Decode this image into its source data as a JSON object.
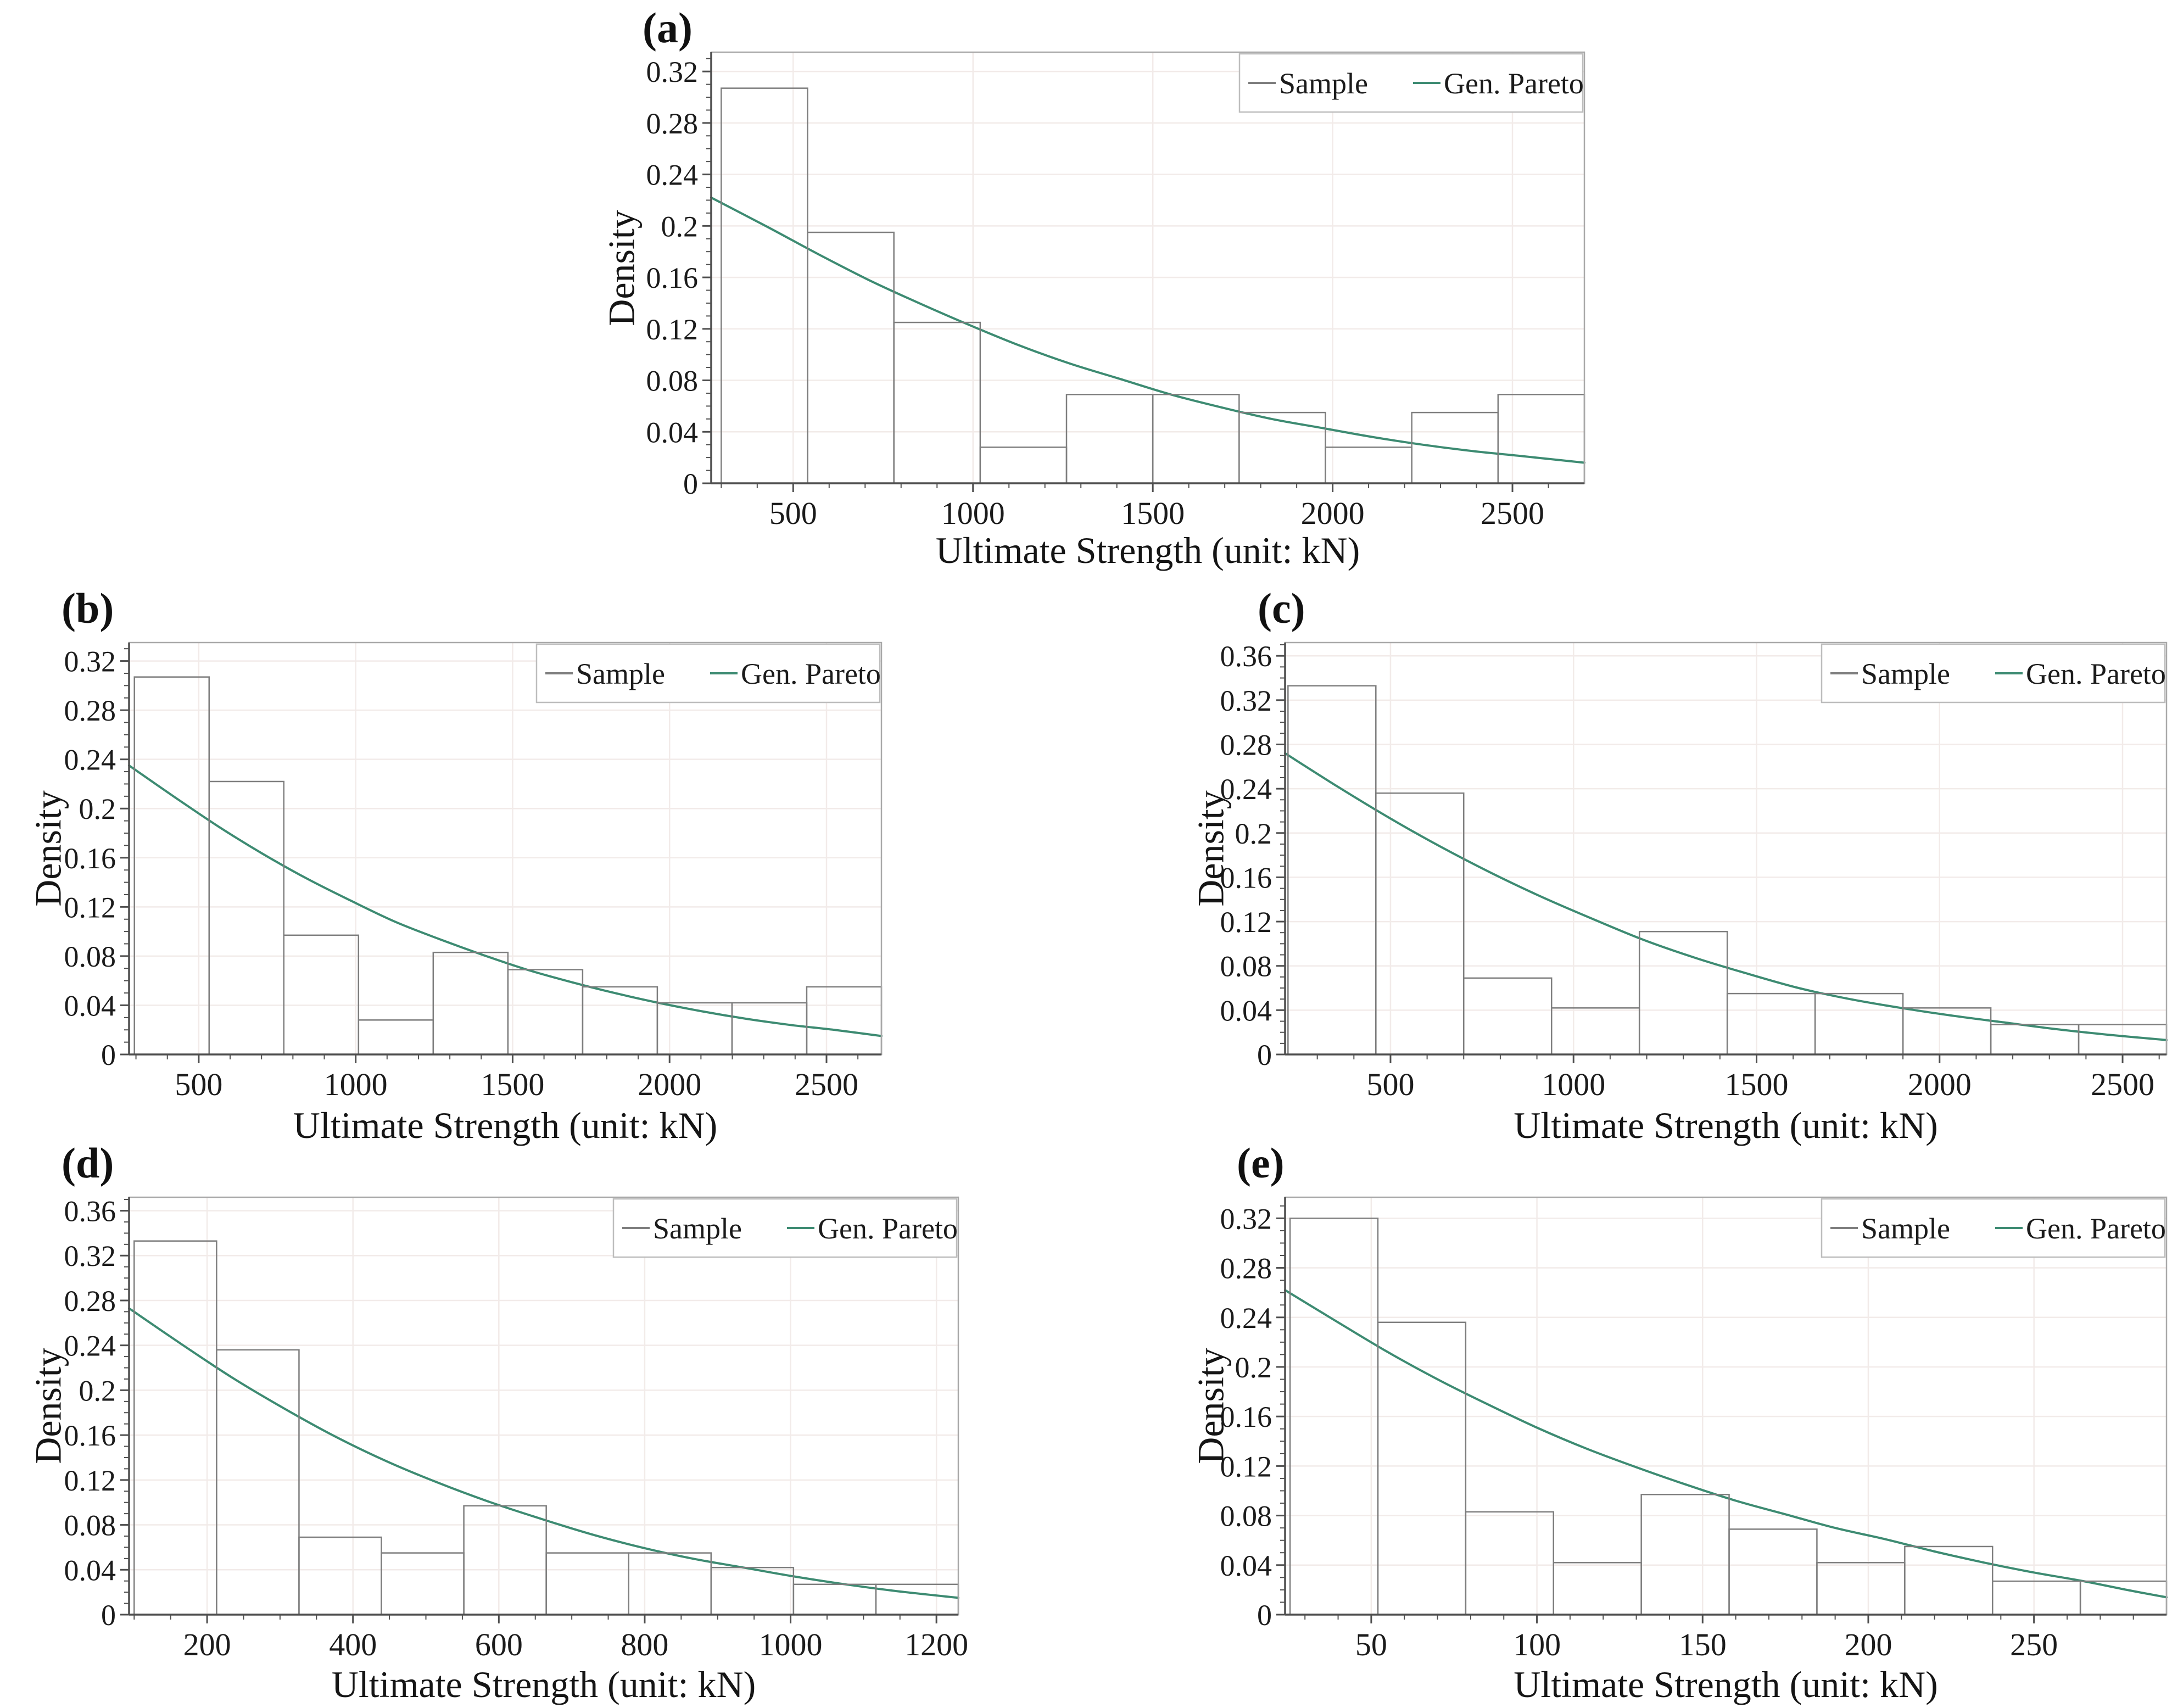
{
  "page": {
    "background": "#ffffff"
  },
  "styles": {
    "curve_color": "#3d8b72",
    "bar_edge_color": "#7e7e7e",
    "bar_fill": "none",
    "axis_color": "#4f4f4f",
    "box_color": "#a9a9a9",
    "grid_color": "#f2ebe9",
    "text_color": "#1b1b1b",
    "legend_border": "#bdbdbd",
    "legend_fill": "#ffffff"
  },
  "legend": {
    "items": [
      {
        "label": "Sample",
        "color": "#7e7e7e"
      },
      {
        "label": "Gen. Pareto",
        "color": "#3d8b72"
      }
    ]
  },
  "chart_data": [
    {
      "title": "(a)",
      "type": "bar",
      "subtype": "histogram-with-fit-line",
      "xlabel": "Ultimate Strength (unit: kN)",
      "ylabel": "Density",
      "xlim": [
        272,
        2700
      ],
      "ylim": [
        0,
        0.335
      ],
      "xticks": [
        500,
        1000,
        1500,
        2000,
        2500
      ],
      "yticks": [
        "0",
        "0.04",
        "0.08",
        "0.12",
        "0.16",
        "0.2",
        "0.24",
        "0.28",
        "0.32"
      ],
      "x_minor_step": 100,
      "y_minor_step": 0.01,
      "grid": true,
      "legend_position": "top-right",
      "legend_labels": [
        "Sample",
        "Gen. Pareto"
      ],
      "series": [
        {
          "name": "Sample",
          "type": "histogram",
          "bin_edges": [
            300,
            540,
            780,
            1020,
            1260,
            1500,
            1740,
            1980,
            2220,
            2460,
            2700
          ],
          "densities": [
            0.307,
            0.195,
            0.125,
            0.028,
            0.069,
            0.069,
            0.055,
            0.028,
            0.055,
            0.069
          ]
        },
        {
          "name": "Gen. Pareto",
          "type": "line",
          "points": [
            [
              272,
              0.222
            ],
            [
              430,
              0.199
            ],
            [
              570,
              0.178
            ],
            [
              710,
              0.158
            ],
            [
              850,
              0.14
            ],
            [
              990,
              0.123
            ],
            [
              1130,
              0.107
            ],
            [
              1270,
              0.093
            ],
            [
              1410,
              0.081
            ],
            [
              1550,
              0.069
            ],
            [
              1690,
              0.059
            ],
            [
              1830,
              0.05
            ],
            [
              1970,
              0.043
            ],
            [
              2110,
              0.036
            ],
            [
              2250,
              0.03
            ],
            [
              2390,
              0.025
            ],
            [
              2530,
              0.021
            ],
            [
              2700,
              0.016
            ]
          ]
        }
      ]
    },
    {
      "title": "(b)",
      "type": "bar",
      "subtype": "histogram-with-fit-line",
      "xlabel": "Ultimate Strength (unit: kN)",
      "ylabel": "Density",
      "xlim": [
        278,
        2675
      ],
      "ylim": [
        0,
        0.335
      ],
      "xticks": [
        500,
        1000,
        1500,
        2000,
        2500
      ],
      "yticks": [
        "0",
        "0.04",
        "0.08",
        "0.12",
        "0.16",
        "0.2",
        "0.24",
        "0.28",
        "0.32"
      ],
      "x_minor_step": 100,
      "y_minor_step": 0.01,
      "grid": true,
      "legend_position": "top-right",
      "legend_labels": [
        "Sample",
        "Gen. Pareto"
      ],
      "series": [
        {
          "name": "Sample",
          "type": "histogram",
          "bin_edges": [
            295,
            533,
            771,
            1009,
            1247,
            1485,
            1723,
            1961,
            2199,
            2437,
            2675
          ],
          "densities": [
            0.307,
            0.222,
            0.097,
            0.028,
            0.083,
            0.069,
            0.055,
            0.042,
            0.042,
            0.055
          ]
        },
        {
          "name": "Gen. Pareto",
          "type": "line",
          "points": [
            [
              278,
              0.235
            ],
            [
              425,
              0.209
            ],
            [
              565,
              0.185
            ],
            [
              705,
              0.163
            ],
            [
              845,
              0.143
            ],
            [
              985,
              0.125
            ],
            [
              1125,
              0.108
            ],
            [
              1265,
              0.094
            ],
            [
              1405,
              0.081
            ],
            [
              1545,
              0.069
            ],
            [
              1685,
              0.059
            ],
            [
              1825,
              0.05
            ],
            [
              1965,
              0.042
            ],
            [
              2105,
              0.035
            ],
            [
              2245,
              0.029
            ],
            [
              2385,
              0.024
            ],
            [
              2525,
              0.02
            ],
            [
              2675,
              0.015
            ]
          ]
        }
      ]
    },
    {
      "title": "(c)",
      "type": "bar",
      "subtype": "histogram-with-fit-line",
      "xlabel": "Ultimate Strength (unit: kN)",
      "ylabel": "Density",
      "xlim": [
        212,
        2620
      ],
      "ylim": [
        0,
        0.372
      ],
      "xticks": [
        500,
        1000,
        1500,
        2000,
        2500
      ],
      "yticks": [
        "0",
        "0.04",
        "0.08",
        "0.12",
        "0.16",
        "0.2",
        "0.24",
        "0.28",
        "0.32",
        "0.36"
      ],
      "x_minor_step": 100,
      "y_minor_step": 0.01,
      "grid": true,
      "legend_position": "top-right",
      "legend_labels": [
        "Sample",
        "Gen. Pareto"
      ],
      "series": [
        {
          "name": "Sample",
          "type": "histogram",
          "bin_edges": [
            220,
            460,
            700,
            940,
            1180,
            1420,
            1660,
            1900,
            2140,
            2380,
            2620
          ],
          "densities": [
            0.333,
            0.236,
            0.069,
            0.042,
            0.111,
            0.055,
            0.055,
            0.042,
            0.027,
            0.027
          ]
        },
        {
          "name": "Gen. Pareto",
          "type": "line",
          "points": [
            [
              212,
              0.272
            ],
            [
              355,
              0.242
            ],
            [
              495,
              0.214
            ],
            [
              635,
              0.188
            ],
            [
              775,
              0.164
            ],
            [
              915,
              0.142
            ],
            [
              1055,
              0.122
            ],
            [
              1195,
              0.103
            ],
            [
              1335,
              0.087
            ],
            [
              1475,
              0.073
            ],
            [
              1615,
              0.06
            ],
            [
              1755,
              0.05
            ],
            [
              1895,
              0.042
            ],
            [
              2035,
              0.035
            ],
            [
              2175,
              0.029
            ],
            [
              2315,
              0.023
            ],
            [
              2455,
              0.018
            ],
            [
              2620,
              0.013
            ]
          ]
        }
      ]
    },
    {
      "title": "(d)",
      "type": "bar",
      "subtype": "histogram-with-fit-line",
      "xlabel": "Ultimate Strength (unit: kN)",
      "ylabel": "Density",
      "xlim": [
        93,
        1230
      ],
      "ylim": [
        0,
        0.372
      ],
      "xticks": [
        200,
        400,
        600,
        800,
        1000,
        1200
      ],
      "yticks": [
        "0",
        "0.04",
        "0.08",
        "0.12",
        "0.16",
        "0.2",
        "0.24",
        "0.28",
        "0.32",
        "0.36"
      ],
      "x_minor_step": 50,
      "y_minor_step": 0.01,
      "grid": true,
      "legend_position": "top-right",
      "legend_labels": [
        "Sample",
        "Gen. Pareto"
      ],
      "series": [
        {
          "name": "Sample",
          "type": "histogram",
          "bin_edges": [
            100,
            213,
            326,
            439,
            552,
            665,
            778,
            891,
            1004,
            1117,
            1230
          ],
          "densities": [
            0.333,
            0.236,
            0.069,
            0.055,
            0.097,
            0.055,
            0.055,
            0.042,
            0.027,
            0.027
          ]
        },
        {
          "name": "Gen. Pareto",
          "type": "line",
          "points": [
            [
              93,
              0.273
            ],
            [
              165,
              0.241
            ],
            [
              235,
              0.211
            ],
            [
              305,
              0.184
            ],
            [
              375,
              0.159
            ],
            [
              445,
              0.137
            ],
            [
              515,
              0.118
            ],
            [
              585,
              0.101
            ],
            [
              655,
              0.086
            ],
            [
              725,
              0.072
            ],
            [
              795,
              0.06
            ],
            [
              865,
              0.05
            ],
            [
              935,
              0.042
            ],
            [
              1005,
              0.034
            ],
            [
              1075,
              0.027
            ],
            [
              1145,
              0.021
            ],
            [
              1230,
              0.015
            ]
          ]
        }
      ]
    },
    {
      "title": "(e)",
      "type": "bar",
      "subtype": "histogram-with-fit-line",
      "xlabel": "Ultimate Strength (unit: kN)",
      "ylabel": "Density",
      "xlim": [
        24,
        290
      ],
      "ylim": [
        0,
        0.337
      ],
      "xticks": [
        50,
        100,
        150,
        200,
        250
      ],
      "yticks": [
        "0",
        "0.04",
        "0.08",
        "0.12",
        "0.16",
        "0.2",
        "0.24",
        "0.28",
        "0.32"
      ],
      "x_minor_step": 10,
      "y_minor_step": 0.01,
      "grid": true,
      "legend_position": "top-right",
      "legend_labels": [
        "Sample",
        "Gen. Pareto"
      ],
      "series": [
        {
          "name": "Sample",
          "type": "histogram",
          "bin_edges": [
            25.5,
            52,
            78.5,
            105,
            131.5,
            158,
            184.5,
            211,
            237.5,
            264,
            290
          ],
          "densities": [
            0.32,
            0.236,
            0.083,
            0.042,
            0.097,
            0.069,
            0.042,
            0.055,
            0.027,
            0.027
          ]
        },
        {
          "name": "Gen. Pareto",
          "type": "line",
          "points": [
            [
              24,
              0.262
            ],
            [
              40,
              0.236
            ],
            [
              55,
              0.212
            ],
            [
              70,
              0.19
            ],
            [
              85,
              0.17
            ],
            [
              100,
              0.151
            ],
            [
              115,
              0.134
            ],
            [
              130,
              0.119
            ],
            [
              145,
              0.105
            ],
            [
              160,
              0.092
            ],
            [
              175,
              0.081
            ],
            [
              190,
              0.07
            ],
            [
              205,
              0.061
            ],
            [
              220,
              0.051
            ],
            [
              235,
              0.042
            ],
            [
              250,
              0.034
            ],
            [
              265,
              0.027
            ],
            [
              278,
              0.02
            ],
            [
              290,
              0.014
            ]
          ]
        }
      ]
    }
  ]
}
